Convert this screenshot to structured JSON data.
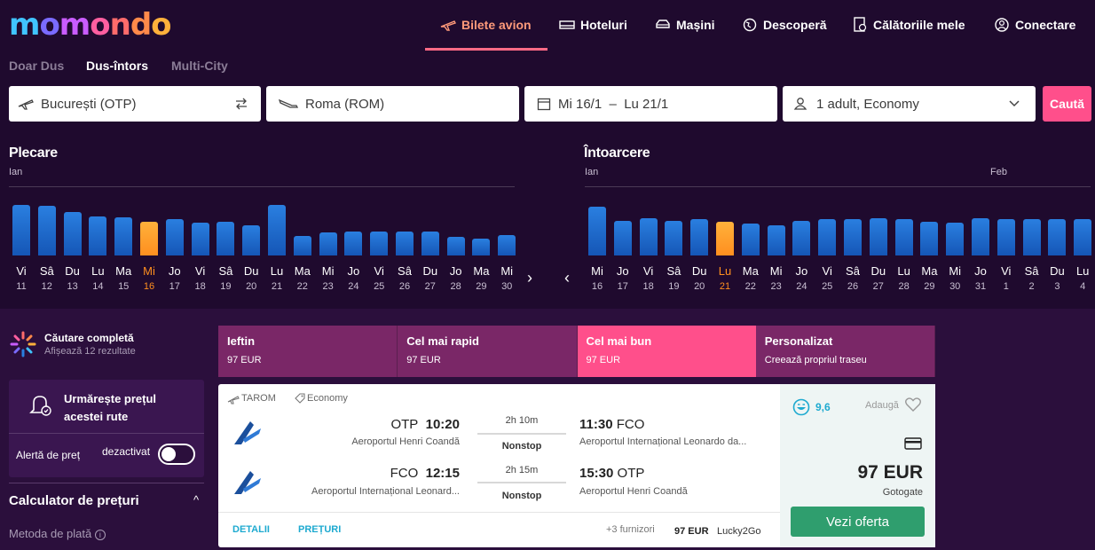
{
  "brand": {
    "logo": "momondo"
  },
  "nav": {
    "flights": "Bilete avion",
    "hotels": "Hoteluri",
    "cars": "Mașini",
    "explore": "Descoperă",
    "trips": "Călătoriile mele",
    "login": "Conectare"
  },
  "trip_types": [
    "Doar Dus",
    "Dus-întors",
    "Multi-City"
  ],
  "search": {
    "origin": "București (OTP)",
    "destination": "Roma (ROM)",
    "dates": "Mi 16/1  –  Lu 21/1",
    "travelers": "1 adult, Economy",
    "button": "Caută"
  },
  "calendar": {
    "departure": {
      "title": "Plecare",
      "month": "Ian",
      "days": [
        {
          "d": "Vi",
          "n": "11",
          "v": 0.98
        },
        {
          "d": "Sâ",
          "n": "12",
          "v": 0.96
        },
        {
          "d": "Du",
          "n": "13",
          "v": 0.84
        },
        {
          "d": "Lu",
          "n": "14",
          "v": 0.76
        },
        {
          "d": "Ma",
          "n": "15",
          "v": 0.74
        },
        {
          "d": "Mi",
          "n": "16",
          "v": 0.66,
          "sel": true
        },
        {
          "d": "Jo",
          "n": "17",
          "v": 0.7
        },
        {
          "d": "Vi",
          "n": "18",
          "v": 0.64
        },
        {
          "d": "Sâ",
          "n": "19",
          "v": 0.66
        },
        {
          "d": "Du",
          "n": "20",
          "v": 0.58
        },
        {
          "d": "Lu",
          "n": "21",
          "v": 0.98
        },
        {
          "d": "Ma",
          "n": "22",
          "v": 0.38
        },
        {
          "d": "Mi",
          "n": "23",
          "v": 0.44
        },
        {
          "d": "Jo",
          "n": "24",
          "v": 0.46
        },
        {
          "d": "Vi",
          "n": "25",
          "v": 0.46
        },
        {
          "d": "Sâ",
          "n": "26",
          "v": 0.46
        },
        {
          "d": "Du",
          "n": "27",
          "v": 0.46
        },
        {
          "d": "Jo",
          "n": "28",
          "v": 0.36
        },
        {
          "d": "Ma",
          "n": "29",
          "v": 0.32
        },
        {
          "d": "Mi",
          "n": "30",
          "v": 0.4
        }
      ]
    },
    "return": {
      "title": "Întoarcere",
      "month": "Ian",
      "month2": "Feb",
      "days": [
        {
          "d": "Mi",
          "n": "16",
          "v": 0.94
        },
        {
          "d": "Jo",
          "n": "17",
          "v": 0.68
        },
        {
          "d": "Vi",
          "n": "18",
          "v": 0.72
        },
        {
          "d": "Sâ",
          "n": "19",
          "v": 0.68
        },
        {
          "d": "Du",
          "n": "20",
          "v": 0.7
        },
        {
          "d": "Lu",
          "n": "21",
          "v": 0.66,
          "sel": true
        },
        {
          "d": "Ma",
          "n": "22",
          "v": 0.62
        },
        {
          "d": "Mi",
          "n": "23",
          "v": 0.58
        },
        {
          "d": "Jo",
          "n": "24",
          "v": 0.68
        },
        {
          "d": "Vi",
          "n": "25",
          "v": 0.7
        },
        {
          "d": "Sâ",
          "n": "26",
          "v": 0.7
        },
        {
          "d": "Du",
          "n": "27",
          "v": 0.72
        },
        {
          "d": "Lu",
          "n": "28",
          "v": 0.7
        },
        {
          "d": "Ma",
          "n": "29",
          "v": 0.66
        },
        {
          "d": "Mi",
          "n": "30",
          "v": 0.64
        },
        {
          "d": "Jo",
          "n": "31",
          "v": 0.72
        },
        {
          "d": "Vi",
          "n": "1",
          "v": 0.7
        },
        {
          "d": "Sâ",
          "n": "2",
          "v": 0.7
        },
        {
          "d": "Du",
          "n": "3",
          "v": 0.7
        },
        {
          "d": "Lu",
          "n": "4",
          "v": 0.7
        }
      ]
    }
  },
  "summary": {
    "title": "Căutare completă",
    "subtitle": "Afișează 12 rezultate"
  },
  "alert": {
    "title": "Urmărește prețul acestei rute",
    "label": "Alertă de preț",
    "state": "dezactivat"
  },
  "calculator": {
    "title": "Calculator de prețuri",
    "payment_label": "Metoda de plată"
  },
  "sort_tabs": [
    {
      "title": "Ieftin",
      "sub": "97 EUR"
    },
    {
      "title": "Cel mai rapid",
      "sub": "97 EUR"
    },
    {
      "title": "Cel mai bun",
      "sub": "97 EUR"
    },
    {
      "title": "Personalizat",
      "sub": "Creează propriul traseu"
    }
  ],
  "result": {
    "airline": "TAROM",
    "cabin": "Economy",
    "legs": [
      {
        "from_code": "OTP",
        "dep_time": "10:20",
        "from_airport": "Aeroportul Henri Coandă",
        "duration": "2h 10m",
        "stops": "Nonstop",
        "arr_time": "11:30",
        "to_code": "FCO",
        "to_airport": "Aeroportul Internațional Leonardo da..."
      },
      {
        "from_code": "FCO",
        "dep_time": "12:15",
        "from_airport": "Aeroportul Internațional Leonard...",
        "duration": "2h 15m",
        "stops": "Nonstop",
        "arr_time": "15:30",
        "to_code": "OTP",
        "to_airport": "Aeroportul Henri Coandă"
      }
    ],
    "details_link": "DETALII",
    "prices_link": "PREȚURI",
    "more_providers": "+3 furnizori",
    "footer_price": "97 EUR",
    "footer_provider": "Lucky2Go",
    "score": "9,6",
    "add_label": "Adaugă",
    "price": "97 EUR",
    "provider": "Gotogate",
    "cta": "Vezi oferta"
  }
}
